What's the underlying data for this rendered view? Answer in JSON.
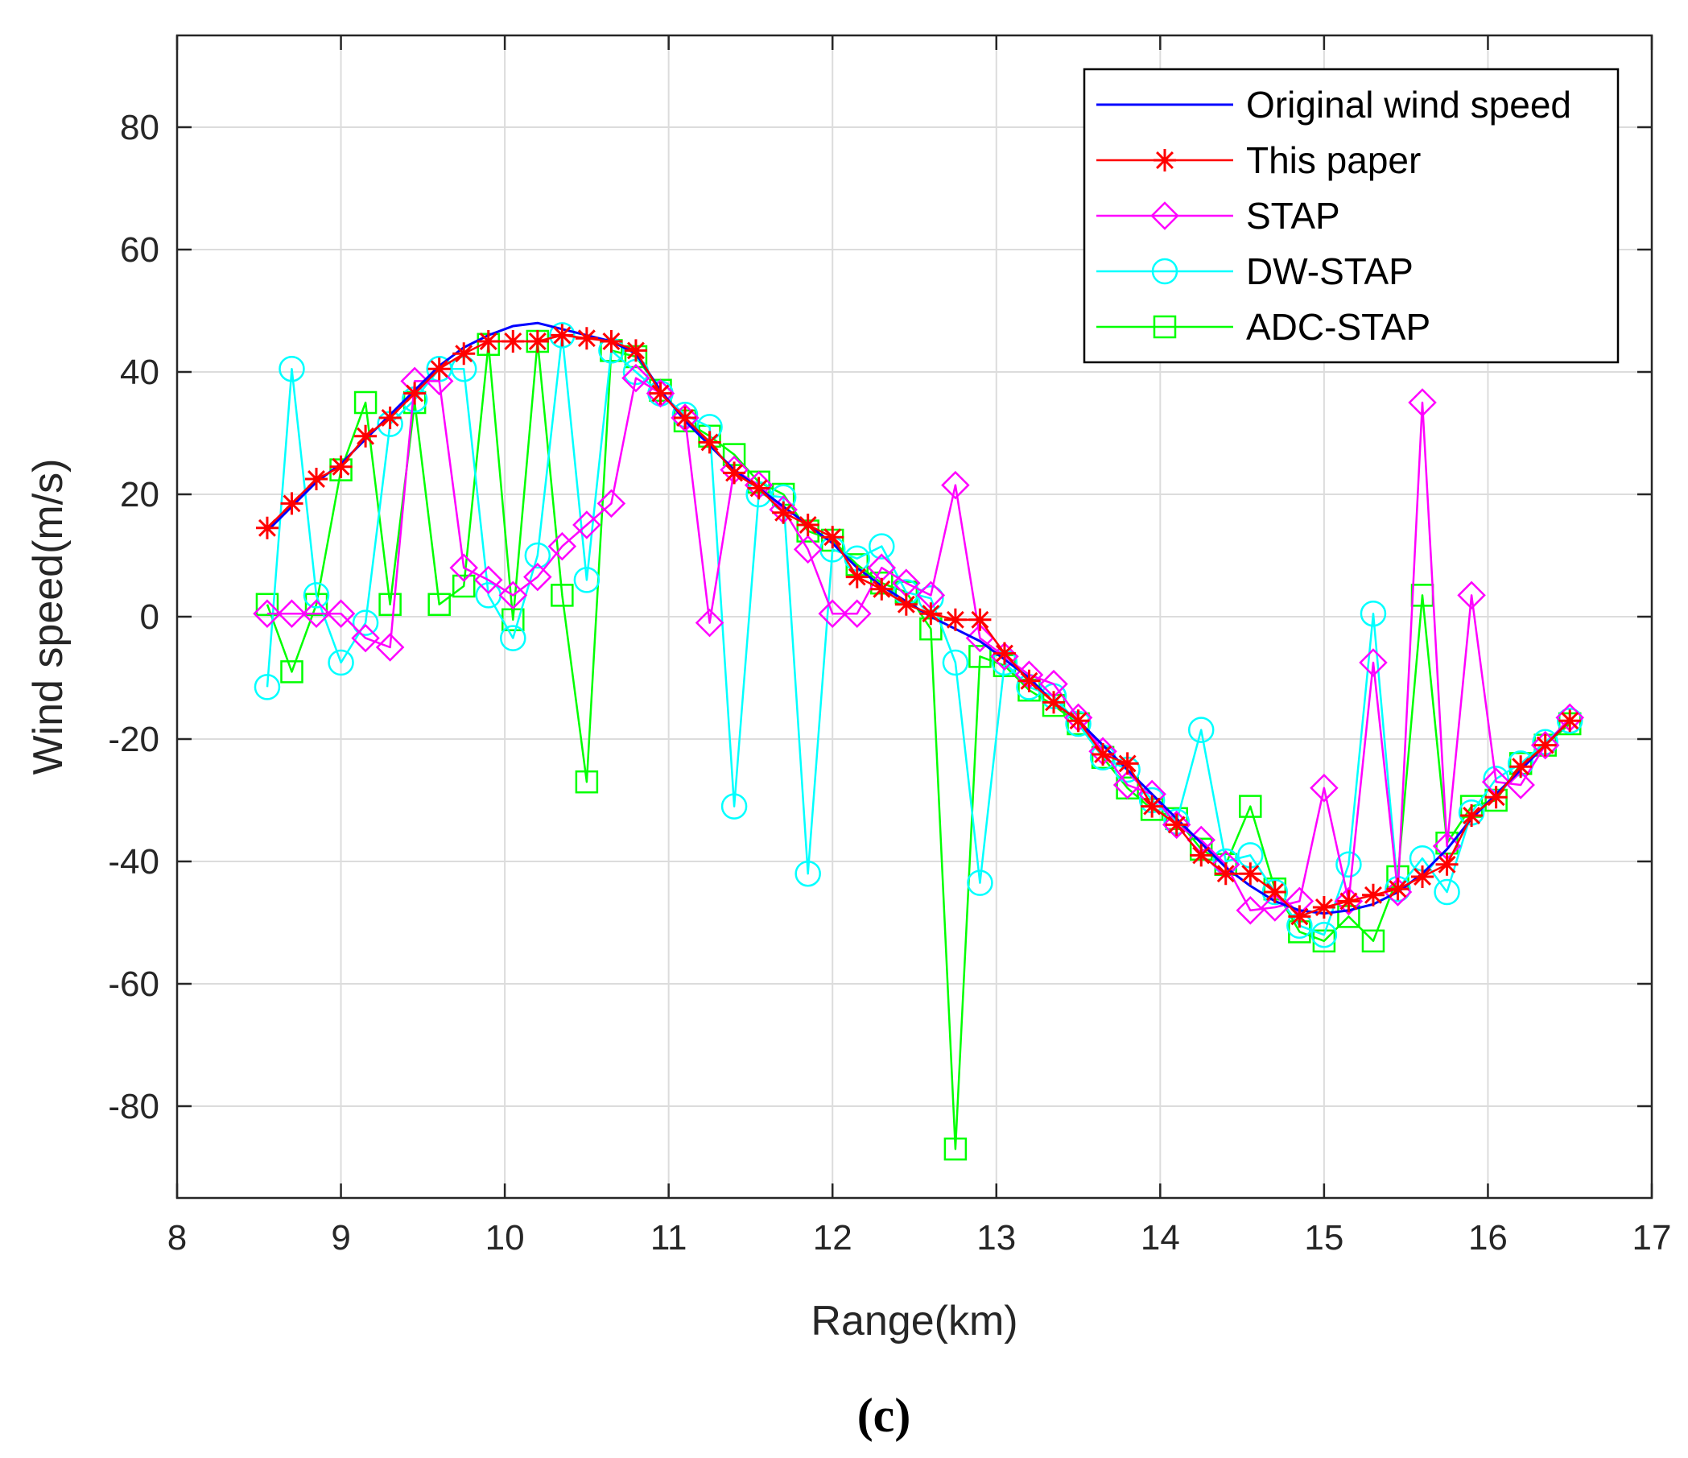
{
  "chart_data": {
    "type": "line",
    "title": "",
    "xlabel": "Range(km)",
    "ylabel": "Wind speed(m/s)",
    "caption": "(c)",
    "xlim": [
      8,
      17
    ],
    "ylim": [
      -95,
      95
    ],
    "xticks": [
      8,
      9,
      10,
      11,
      12,
      13,
      14,
      15,
      16,
      17
    ],
    "yticks": [
      -80,
      -60,
      -40,
      -20,
      0,
      20,
      40,
      60,
      80
    ],
    "grid": true,
    "legend_position": "top-right",
    "x": [
      8.55,
      8.7,
      8.85,
      9.0,
      9.15,
      9.3,
      9.45,
      9.6,
      9.75,
      9.9,
      10.05,
      10.2,
      10.35,
      10.5,
      10.65,
      10.8,
      10.95,
      11.1,
      11.25,
      11.4,
      11.55,
      11.7,
      11.85,
      12.0,
      12.15,
      12.3,
      12.45,
      12.6,
      12.75,
      12.9,
      13.05,
      13.2,
      13.35,
      13.5,
      13.65,
      13.8,
      13.95,
      14.1,
      14.25,
      14.4,
      14.55,
      14.7,
      14.85,
      15.0,
      15.15,
      15.3,
      15.45,
      15.6,
      15.75,
      15.9,
      16.05,
      16.2,
      16.35,
      16.5
    ],
    "series": [
      {
        "name": "Original wind speed",
        "color": "#0000ff",
        "marker": "none",
        "values": [
          14,
          18,
          22,
          25,
          29,
          33,
          37,
          41,
          44,
          46,
          47.5,
          48,
          47,
          46,
          45,
          43,
          37,
          32,
          28,
          24,
          21,
          18,
          15,
          12,
          8,
          5,
          2.5,
          0,
          -2,
          -4,
          -7,
          -10,
          -14,
          -17,
          -21,
          -25,
          -29,
          -33,
          -37,
          -41,
          -44,
          -46.5,
          -48,
          -48.5,
          -48,
          -47,
          -45,
          -42,
          -38,
          -33,
          -29,
          -25,
          -21,
          -17
        ]
      },
      {
        "name": "This paper",
        "color": "#ff0000",
        "marker": "star",
        "values": [
          14.5,
          18.5,
          22.5,
          24.5,
          29.5,
          32.5,
          36.5,
          40.5,
          43,
          45,
          45,
          45,
          46,
          45.5,
          45,
          43.5,
          36.5,
          32.5,
          28.5,
          23.5,
          21,
          17,
          15,
          13,
          6.5,
          4.5,
          2,
          0.5,
          -0.5,
          -0.5,
          -6,
          -10.5,
          -14,
          -17,
          -22.5,
          -24,
          -31,
          -34,
          -39,
          -42,
          -42,
          -45,
          -49,
          -47.5,
          -46.5,
          -45.5,
          -44.5,
          -42.5,
          -40.5,
          -32.5,
          -29.5,
          -24.5,
          -21,
          -17
        ]
      },
      {
        "name": "STAP",
        "color": "#ff00ff",
        "marker": "diamond",
        "values": [
          0.5,
          0.5,
          0.5,
          0.5,
          -3.5,
          -5,
          38.5,
          38.5,
          8,
          6,
          3.5,
          6.5,
          11.5,
          15,
          18.5,
          39,
          36.5,
          32.5,
          -1,
          24,
          21.5,
          17.5,
          11,
          0.5,
          0.5,
          8,
          5.5,
          3.5,
          21.5,
          -3.5,
          -6.5,
          -9.5,
          -11,
          -16.5,
          -22,
          -27.5,
          -29,
          -34,
          -36.5,
          -40.5,
          -48,
          -47.5,
          -46.5,
          -28,
          -46.5,
          -7.5,
          -45,
          35,
          -37.5,
          3.5,
          -27,
          -27.5,
          -21,
          -16.5
        ]
      },
      {
        "name": "DW-STAP",
        "color": "#00ffff",
        "marker": "circle",
        "values": [
          -11.5,
          40.5,
          3.5,
          -7.5,
          -1,
          31.5,
          35.5,
          40.5,
          40.5,
          3.5,
          -3.5,
          10,
          46,
          6,
          43.5,
          40,
          36.5,
          33,
          31,
          -31,
          20,
          19.5,
          -42,
          11,
          9.5,
          11.5,
          4,
          3,
          -7.5,
          -43.5,
          -7.5,
          -11.5,
          -13,
          -17.5,
          -23,
          -25,
          -30,
          -33.5,
          -18.5,
          -40,
          -39,
          -45,
          -50.5,
          -52,
          -40.5,
          0.5,
          -44.5,
          -39.5,
          -45,
          -32,
          -26.5,
          -24,
          -20.5,
          -17
        ]
      },
      {
        "name": "ADC-STAP",
        "color": "#00ff00",
        "marker": "square",
        "values": [
          2,
          -9,
          2,
          24,
          35,
          2,
          35,
          2,
          5,
          44.5,
          -0.5,
          45,
          3.5,
          -27,
          43.5,
          42.5,
          37,
          32,
          29.5,
          26.5,
          22,
          20,
          14,
          12.5,
          8.5,
          5.5,
          4,
          -2,
          -87,
          -6.5,
          -8,
          -12,
          -14.5,
          -17.5,
          -23,
          -28,
          -31.5,
          -33,
          -38,
          -40.5,
          -31,
          -44.5,
          -51.5,
          -53,
          -49,
          -53,
          -42.5,
          3.5,
          -37,
          -31,
          -30,
          -24,
          -21,
          -17.5
        ]
      }
    ]
  }
}
